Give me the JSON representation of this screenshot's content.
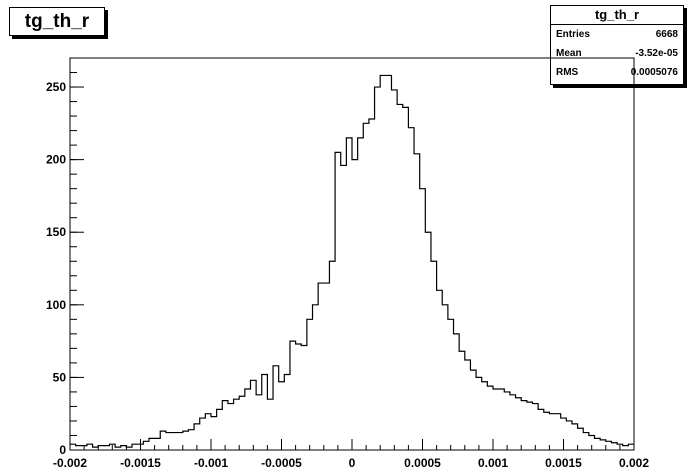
{
  "title": "tg_th_r",
  "stats": {
    "title": "tg_th_r",
    "rows": [
      {
        "label": "Entries",
        "value": "6668"
      },
      {
        "label": "Mean",
        "value": "-3.52e-05"
      },
      {
        "label": "RMS",
        "value": "0.0005076"
      }
    ]
  },
  "chart_data": {
    "type": "histogram",
    "title": "tg_th_r",
    "xlabel": "",
    "ylabel": "",
    "xlim": [
      -0.002,
      0.002
    ],
    "ylim": [
      0,
      270
    ],
    "bins": 100,
    "bin_edges_range": [
      -0.002,
      0.002
    ],
    "x_ticks": [
      -0.002,
      -0.0015,
      -0.001,
      -0.0005,
      0,
      0.0005,
      0.001,
      0.0015,
      0.002
    ],
    "x_tick_labels": [
      "-0.002",
      "-0.0015",
      "-0.001",
      "-0.0005",
      "0",
      "0.0005",
      "0.001",
      "0.0015",
      "0.002"
    ],
    "y_ticks": [
      0,
      50,
      100,
      150,
      200,
      250
    ],
    "y_tick_labels": [
      "0",
      "50",
      "100",
      "150",
      "200",
      "250"
    ],
    "values": [
      4,
      3,
      3,
      4,
      2,
      3,
      3,
      4,
      2,
      3,
      2,
      4,
      4,
      6,
      8,
      8,
      13,
      12,
      12,
      12,
      13,
      14,
      18,
      22,
      25,
      23,
      28,
      34,
      32,
      35,
      37,
      42,
      48,
      38,
      52,
      35,
      58,
      47,
      52,
      75,
      73,
      72,
      90,
      100,
      115,
      115,
      130,
      205,
      196,
      215,
      200,
      215,
      225,
      228,
      250,
      258,
      258,
      248,
      238,
      236,
      222,
      204,
      180,
      150,
      130,
      110,
      100,
      90,
      80,
      68,
      62,
      55,
      50,
      47,
      44,
      42,
      42,
      40,
      38,
      36,
      34,
      33,
      32,
      28,
      26,
      25,
      25,
      22,
      20,
      18,
      15,
      12,
      10,
      8,
      7,
      6,
      5,
      4,
      3,
      4
    ],
    "grid": false,
    "legend": "stats box top-right"
  }
}
